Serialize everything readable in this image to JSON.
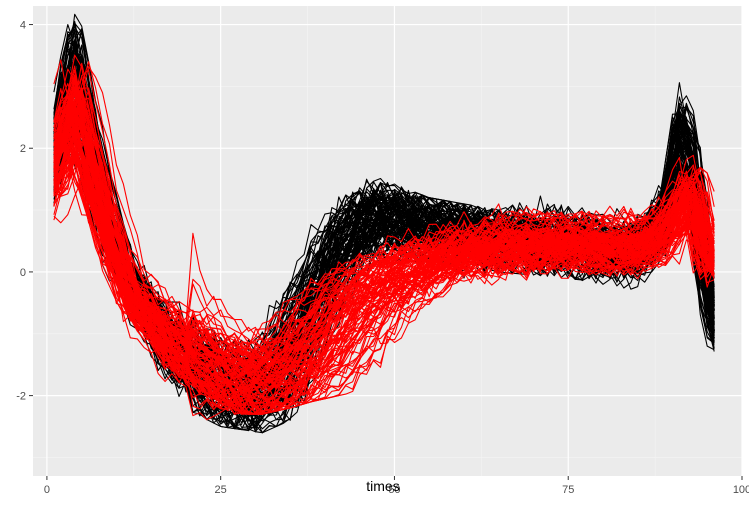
{
  "chart_data": {
    "type": "line",
    "title": "",
    "xlabel": "times",
    "ylabel": "",
    "xlim": [
      -2,
      100
    ],
    "ylim": [
      -3.3,
      4.3
    ],
    "x_ticks": [
      0,
      25,
      50,
      75,
      100
    ],
    "x_tick_labels": [
      "0",
      "25",
      "50",
      "75",
      "100"
    ],
    "y_ticks": [
      -2,
      0,
      2,
      4
    ],
    "y_tick_labels": [
      "-2",
      "0",
      "2",
      "4"
    ],
    "x_minor_ticks": [
      12.5,
      37.5,
      62.5,
      87.5
    ],
    "y_minor_ticks": [
      -3,
      -1,
      1,
      3
    ],
    "grid": true,
    "legend": "none",
    "colors": {
      "panel": "#ebebeb",
      "grid_major": "#ffffff",
      "grid_minor": "#f5f5f5",
      "group_a": "#000000",
      "group_b": "#ff0000"
    },
    "series_groups": [
      {
        "color": "#000000",
        "count": 100,
        "x_range": [
          1,
          96
        ],
        "typical_profile": {
          "x": [
            1,
            4,
            8,
            12,
            18,
            25,
            31,
            35,
            38,
            42,
            46,
            55,
            65,
            75,
            85,
            89,
            91,
            93,
            95,
            96
          ],
          "y": [
            1.8,
            3.2,
            1.2,
            -0.2,
            -1.2,
            -1.8,
            -2.0,
            -1.4,
            -0.6,
            0.3,
            0.95,
            0.75,
            0.55,
            0.45,
            0.35,
            0.9,
            2.2,
            1.6,
            -0.2,
            -0.8
          ]
        },
        "range_min": [
          -0.6,
          1.0,
          -0.6,
          -1.5,
          -2.1,
          -2.5,
          -2.6,
          -2.4,
          -2.0,
          -1.6,
          -1.2,
          -0.2,
          0.0,
          -0.1,
          -0.3,
          -0.4,
          -0.5,
          -0.6,
          -1.2,
          -1.5
        ],
        "range_max": [
          3.6,
          4.2,
          3.3,
          1.8,
          0.6,
          -0.3,
          -0.2,
          1.8,
          1.7,
          1.4,
          1.6,
          1.2,
          1.0,
          1.4,
          1.4,
          1.8,
          3.3,
          3.1,
          2.0,
          0.8
        ]
      },
      {
        "color": "#ff0000",
        "count": 100,
        "x_range": [
          1,
          96
        ],
        "typical_profile": {
          "x": [
            1,
            4,
            8,
            12,
            18,
            25,
            31,
            35,
            38,
            42,
            46,
            55,
            65,
            75,
            85,
            89,
            91,
            93,
            95,
            96
          ],
          "y": [
            1.5,
            2.6,
            0.9,
            -0.4,
            -1.1,
            -1.6,
            -1.8,
            -1.6,
            -1.3,
            -0.8,
            -0.3,
            0.2,
            0.4,
            0.45,
            0.4,
            0.6,
            1.0,
            1.2,
            0.2,
            0.3
          ]
        },
        "range_min": [
          -1.7,
          -0.8,
          -1.5,
          -2.4,
          -2.9,
          -2.3,
          -2.3,
          -2.2,
          -2.1,
          -2.0,
          -1.9,
          -1.6,
          -1.2,
          -0.3,
          -0.4,
          -0.5,
          -0.4,
          -0.6,
          -2.0,
          -1.3
        ],
        "range_max": [
          3.7,
          3.9,
          2.9,
          1.5,
          1.0,
          1.2,
          0.9,
          1.5,
          1.6,
          1.3,
          1.2,
          1.2,
          1.1,
          1.3,
          1.8,
          1.3,
          2.2,
          3.4,
          1.6,
          1.3
        ]
      }
    ]
  }
}
